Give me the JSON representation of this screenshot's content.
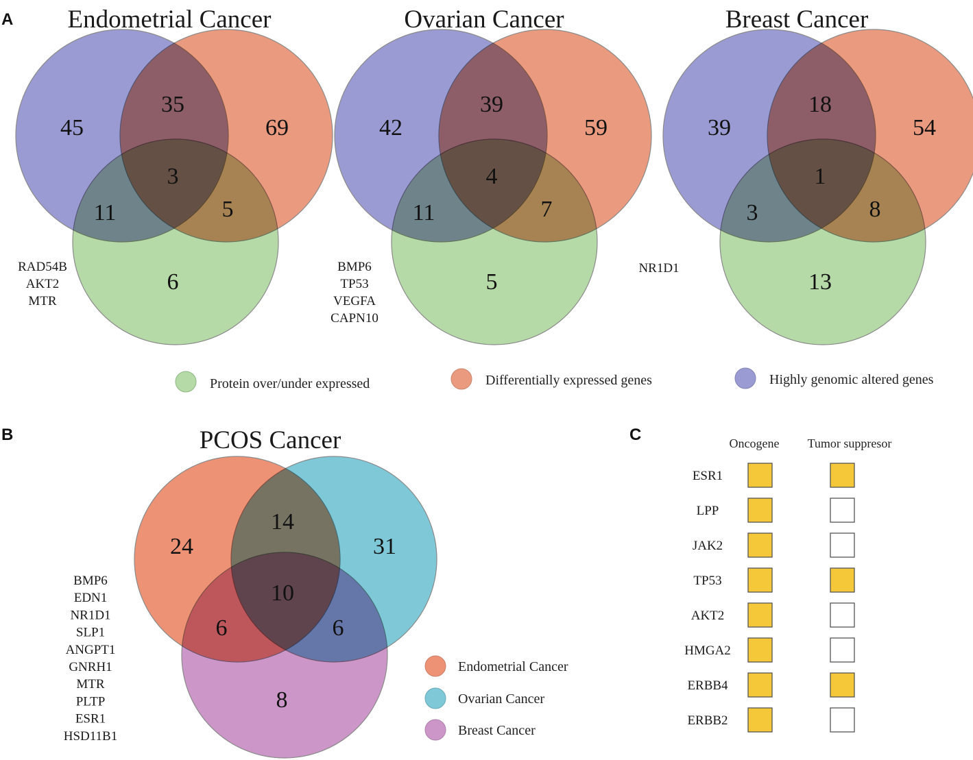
{
  "panel_a": {
    "letter": "A",
    "colors": {
      "green": "#b6d9a8",
      "orange": "#ea9a7e",
      "purple": "#9a9bd2"
    },
    "legend": [
      {
        "label": "Protein over/under expressed",
        "color": "#b6d9a8"
      },
      {
        "label": "Differentially expressed genes",
        "color": "#ea9a7e"
      },
      {
        "label": "Highly genomic altered genes",
        "color": "#9a9bd2"
      }
    ],
    "venns": [
      {
        "title": "Endometrial Cancer",
        "counts": {
          "purple_only": "45",
          "purple_orange": "35",
          "orange_only": "69",
          "all": "3",
          "purple_green": "11",
          "orange_green": "5",
          "green_only": "6"
        },
        "genes": [
          "RAD54B",
          "AKT2",
          "MTR"
        ]
      },
      {
        "title": "Ovarian Cancer",
        "counts": {
          "purple_only": "42",
          "purple_orange": "39",
          "orange_only": "59",
          "all": "4",
          "purple_green": "11",
          "orange_green": "7",
          "green_only": "5"
        },
        "genes": [
          "BMP6",
          "TP53",
          "VEGFA",
          "CAPN10"
        ]
      },
      {
        "title": "Breast Cancer",
        "counts": {
          "purple_only": "39",
          "purple_orange": "18",
          "orange_only": "54",
          "all": "1",
          "purple_green": "3",
          "orange_green": "8",
          "green_only": "13"
        },
        "genes": [
          "NR1D1"
        ]
      }
    ]
  },
  "panel_b": {
    "letter": "B",
    "title": "PCOS Cancer",
    "colors": {
      "endometrial": "#ee9275",
      "ovarian": "#7ec8d8",
      "breast": "#cc97c8"
    },
    "counts": {
      "endo_only": "24",
      "endo_ovarian": "14",
      "ovarian_only": "31",
      "all": "10",
      "endo_breast": "6",
      "ovarian_breast": "6",
      "breast_only": "8"
    },
    "genes": [
      "BMP6",
      "EDN1",
      "NR1D1",
      "SLP1",
      "ANGPT1",
      "GNRH1",
      "MTR",
      "PLTP",
      "ESR1",
      "HSD11B1"
    ],
    "legend": [
      {
        "label": "Endometrial Cancer",
        "color": "#ee9275"
      },
      {
        "label": "Ovarian Cancer",
        "color": "#7ec8d8"
      },
      {
        "label": "Breast Cancer",
        "color": "#cc97c8"
      }
    ]
  },
  "panel_c": {
    "letter": "C",
    "columns": [
      "Oncogene",
      "Tumor suppresor"
    ],
    "fill_color": "#f5c83a",
    "rows": [
      {
        "gene": "ESR1",
        "oncogene": true,
        "tumor_suppressor": true
      },
      {
        "gene": "LPP",
        "oncogene": true,
        "tumor_suppressor": false
      },
      {
        "gene": "JAK2",
        "oncogene": true,
        "tumor_suppressor": false
      },
      {
        "gene": "TP53",
        "oncogene": true,
        "tumor_suppressor": true
      },
      {
        "gene": "AKT2",
        "oncogene": true,
        "tumor_suppressor": false
      },
      {
        "gene": "HMGA2",
        "oncogene": true,
        "tumor_suppressor": false
      },
      {
        "gene": "ERBB4",
        "oncogene": true,
        "tumor_suppressor": true
      },
      {
        "gene": "ERBB2",
        "oncogene": true,
        "tumor_suppressor": false
      }
    ]
  }
}
